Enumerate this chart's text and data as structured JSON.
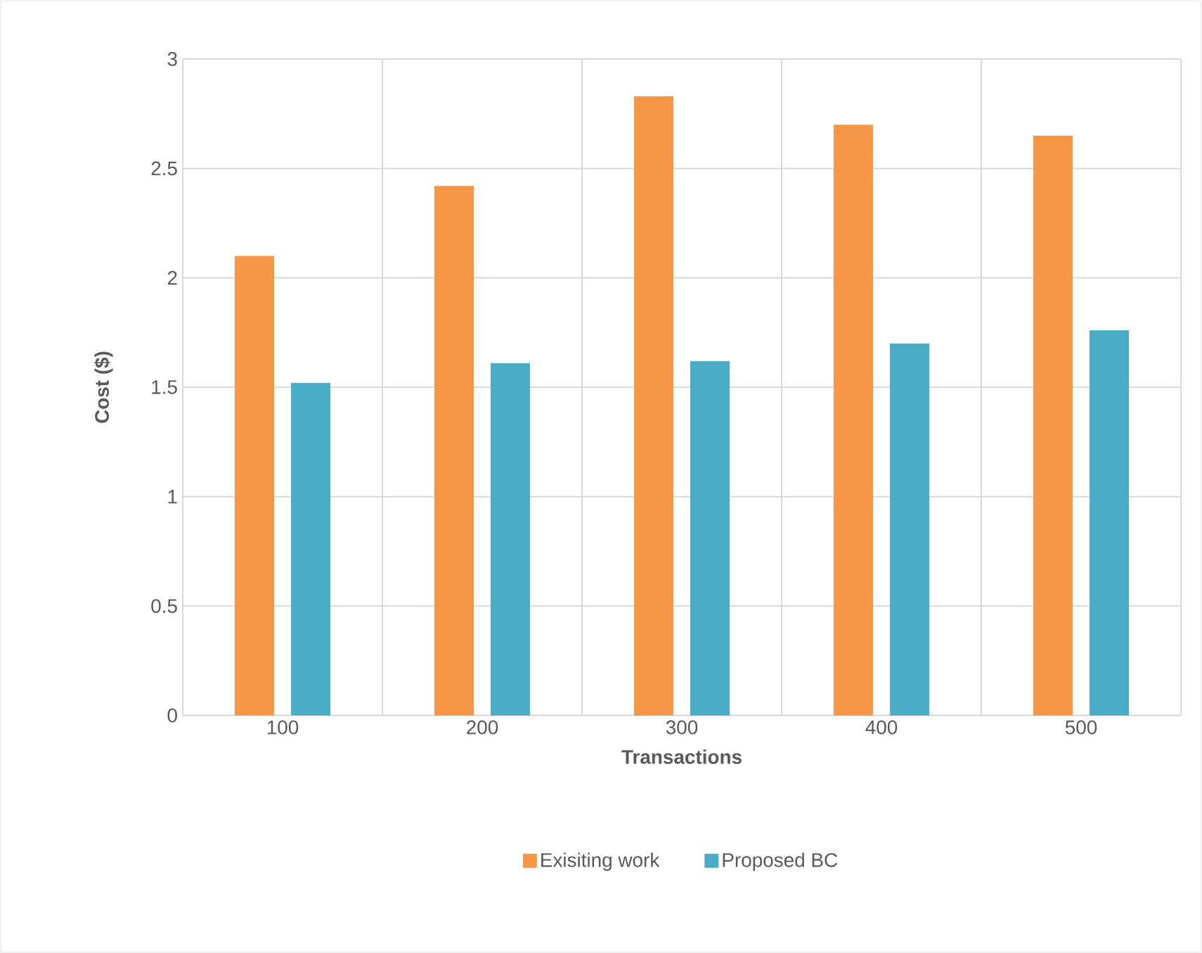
{
  "chart_data": {
    "type": "bar",
    "xlabel": "Transactions",
    "ylabel": "Cost ($)",
    "categories": [
      "100",
      "200",
      "300",
      "400",
      "500"
    ],
    "series": [
      {
        "name": "Exisiting work",
        "color": "#f79646",
        "values": [
          2.1,
          2.42,
          2.83,
          2.7,
          2.65
        ]
      },
      {
        "name": "Proposed BC",
        "color": "#4bacc6",
        "values": [
          1.52,
          1.61,
          1.62,
          1.7,
          1.76
        ]
      }
    ],
    "ylim": [
      0,
      3
    ],
    "yticks": [
      0,
      0.5,
      1,
      1.5,
      2,
      2.5,
      3
    ],
    "grid": true,
    "legend": "bottom"
  }
}
